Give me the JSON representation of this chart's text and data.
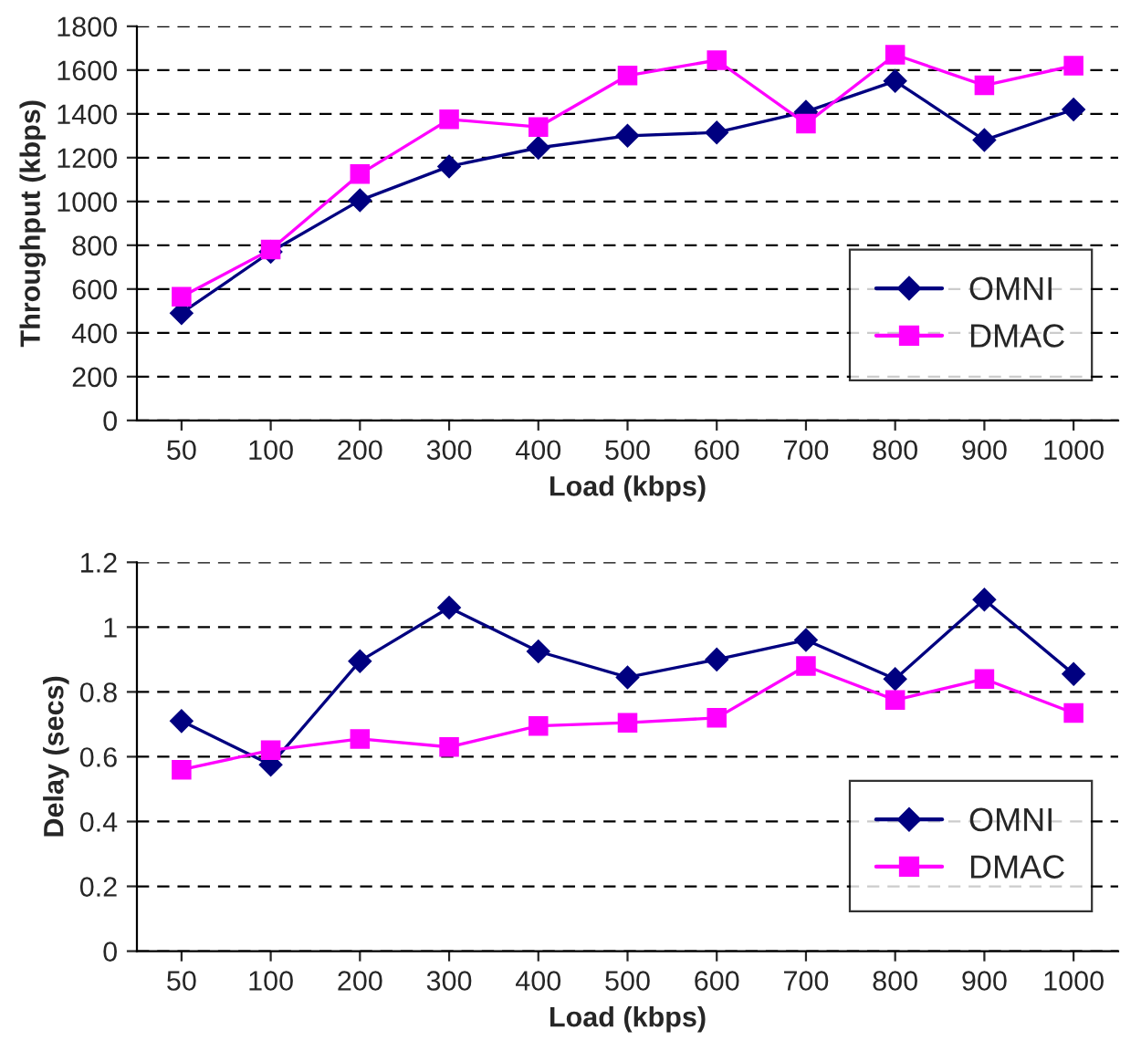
{
  "chart_data": [
    {
      "type": "line",
      "xlabel": "Load (kbps)",
      "ylabel": "Throughput (kbps)",
      "categories": [
        "50",
        "100",
        "200",
        "300",
        "400",
        "500",
        "600",
        "700",
        "800",
        "900",
        "1000"
      ],
      "series": [
        {
          "name": "OMNI",
          "color": "#000080",
          "marker": "diamond",
          "values": [
            490,
            770,
            1005,
            1160,
            1245,
            1300,
            1315,
            1410,
            1550,
            1280,
            1420
          ]
        },
        {
          "name": "DMAC",
          "color": "#ff00ff",
          "marker": "square",
          "values": [
            565,
            780,
            1125,
            1375,
            1340,
            1575,
            1645,
            1355,
            1670,
            1530,
            1620
          ]
        }
      ],
      "ylim": [
        0,
        1800
      ],
      "yticks": [
        0,
        200,
        400,
        600,
        800,
        1000,
        1200,
        1400,
        1600,
        1800
      ],
      "grid": "y",
      "legend": "bottom right",
      "line_style": "solid"
    },
    {
      "type": "line",
      "xlabel": "Load (kbps)",
      "ylabel": "Delay (secs)",
      "categories": [
        "50",
        "100",
        "200",
        "300",
        "400",
        "500",
        "600",
        "700",
        "800",
        "900",
        "1000"
      ],
      "series": [
        {
          "name": "OMNI",
          "color": "#000080",
          "marker": "diamond",
          "values": [
            0.71,
            0.575,
            0.895,
            1.06,
            0.925,
            0.845,
            0.9,
            0.96,
            0.84,
            1.085,
            0.855
          ]
        },
        {
          "name": "DMAC",
          "color": "#ff00ff",
          "marker": "square",
          "values": [
            0.56,
            0.62,
            0.655,
            0.63,
            0.695,
            0.705,
            0.72,
            0.88,
            0.775,
            0.84,
            0.735
          ]
        }
      ],
      "ylim": [
        0,
        1.2
      ],
      "yticks": [
        0,
        0.2,
        0.4,
        {
          "value": 0.6000000001,
          "label": "0.6"
        },
        0.8,
        1,
        1.2
      ],
      "grid": "y",
      "legend": "bottom right",
      "line_style": "solid"
    }
  ]
}
